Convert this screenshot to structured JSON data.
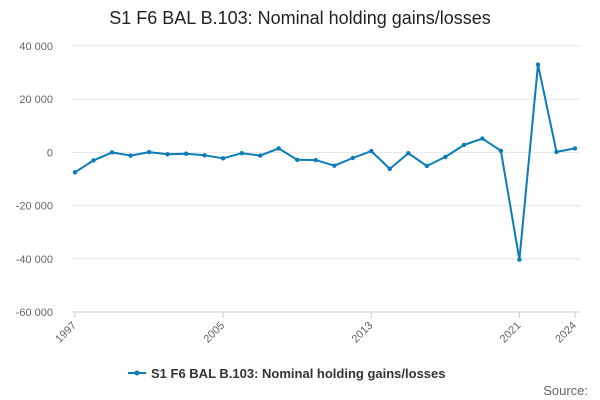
{
  "chart_data": {
    "type": "line",
    "title": "S1 F6 BAL B.103: Nominal holding gains/losses",
    "xlabel": "",
    "ylabel": "",
    "xlim": [
      1997,
      2024
    ],
    "ylim": [
      -60000,
      40000
    ],
    "yticks": [
      40000,
      20000,
      0,
      -20000,
      -40000,
      -60000
    ],
    "ytick_labels": [
      "40 000",
      "20 000",
      "0",
      "-20 000",
      "-40 000",
      "-60 000"
    ],
    "xticks": [
      1997,
      2005,
      2013,
      2021,
      2024
    ],
    "xtick_labels": [
      "1997",
      "2005",
      "2013",
      "2021",
      "2024"
    ],
    "grid": "horizontal",
    "legend": "bottom",
    "series": [
      {
        "name": "S1 F6 BAL B.103: Nominal holding gains/losses",
        "color": "#0a7cb8",
        "x": [
          1997,
          1998,
          1999,
          2000,
          2001,
          2002,
          2003,
          2004,
          2005,
          2006,
          2007,
          2008,
          2009,
          2010,
          2011,
          2012,
          2013,
          2014,
          2015,
          2016,
          2017,
          2018,
          2019,
          2020,
          2021,
          2022,
          2023,
          2024
        ],
        "y": [
          -7500,
          -3000,
          0,
          -1200,
          100,
          -700,
          -500,
          -1100,
          -2200,
          -300,
          -1200,
          1500,
          -2800,
          -2900,
          -5000,
          -2100,
          500,
          -6200,
          -300,
          -5100,
          -1700,
          2800,
          5200,
          600,
          -40300,
          33000,
          200,
          1500
        ]
      }
    ]
  },
  "source_label": "Source:"
}
